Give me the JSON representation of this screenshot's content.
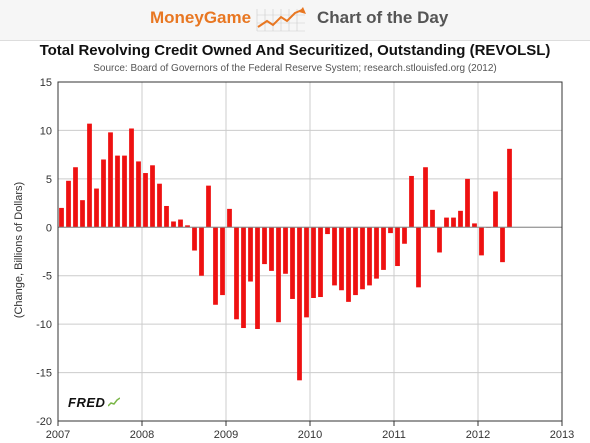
{
  "banner": {
    "brand": "MoneyGame",
    "brand_icon": "rising-trend-arrow-icon",
    "title": "Chart of the Day",
    "accent_color": "#e87722"
  },
  "fred_logo": "FRED",
  "chart_data": {
    "type": "bar",
    "title": "Total Revolving Credit Owned And Securitized, Outstanding (REVOLSL)",
    "subtitle": "Source: Board of Governors of the Federal Reserve System; research.stlouisfed.org (2012)",
    "xlabel": "",
    "ylabel": "(Change, Billions of Dollars)",
    "xlim": [
      2007,
      2013
    ],
    "ylim": [
      -20,
      15
    ],
    "xticks": [
      "2007",
      "2008",
      "2009",
      "2010",
      "2011",
      "2012",
      "2013"
    ],
    "yticks": [
      "15",
      "10",
      "5",
      "0",
      "-5",
      "-10",
      "-15",
      "-20"
    ],
    "grid": true,
    "bar_color": "#ee1111",
    "x": [
      "2007-01",
      "2007-02",
      "2007-03",
      "2007-04",
      "2007-05",
      "2007-06",
      "2007-07",
      "2007-08",
      "2007-09",
      "2007-10",
      "2007-11",
      "2007-12",
      "2008-01",
      "2008-02",
      "2008-03",
      "2008-04",
      "2008-05",
      "2008-06",
      "2008-07",
      "2008-08",
      "2008-09",
      "2008-10",
      "2008-11",
      "2008-12",
      "2009-01",
      "2009-02",
      "2009-03",
      "2009-04",
      "2009-05",
      "2009-06",
      "2009-07",
      "2009-08",
      "2009-09",
      "2009-10",
      "2009-11",
      "2009-12",
      "2010-01",
      "2010-02",
      "2010-03",
      "2010-04",
      "2010-05",
      "2010-06",
      "2010-07",
      "2010-08",
      "2010-09",
      "2010-10",
      "2010-11",
      "2010-12",
      "2011-01",
      "2011-02",
      "2011-03",
      "2011-04",
      "2011-05",
      "2011-06",
      "2011-07",
      "2011-08",
      "2011-09",
      "2011-10",
      "2011-11",
      "2011-12",
      "2012-01",
      "2012-02",
      "2012-03",
      "2012-04",
      "2012-05"
    ],
    "values": [
      2.0,
      4.8,
      6.2,
      2.8,
      10.7,
      4.0,
      7.0,
      9.8,
      7.4,
      7.4,
      10.2,
      6.8,
      5.6,
      6.4,
      4.5,
      2.2,
      0.6,
      0.8,
      0.2,
      -2.4,
      -5.0,
      4.3,
      -8.0,
      -7.0,
      1.9,
      -9.5,
      -10.4,
      -5.6,
      -10.5,
      -3.8,
      -4.5,
      -9.8,
      -4.8,
      -7.4,
      -15.8,
      -9.3,
      -7.3,
      -7.2,
      -0.7,
      -6.0,
      -6.5,
      -7.7,
      -7.0,
      -6.4,
      -6.0,
      -5.3,
      -4.4,
      -0.6,
      -4.0,
      -1.7,
      5.3,
      -6.2,
      6.2,
      1.8,
      -2.6,
      1.0,
      1.0,
      1.7,
      5.0,
      0.4,
      -2.9,
      0.0,
      3.7,
      -3.6,
      8.1
    ]
  }
}
